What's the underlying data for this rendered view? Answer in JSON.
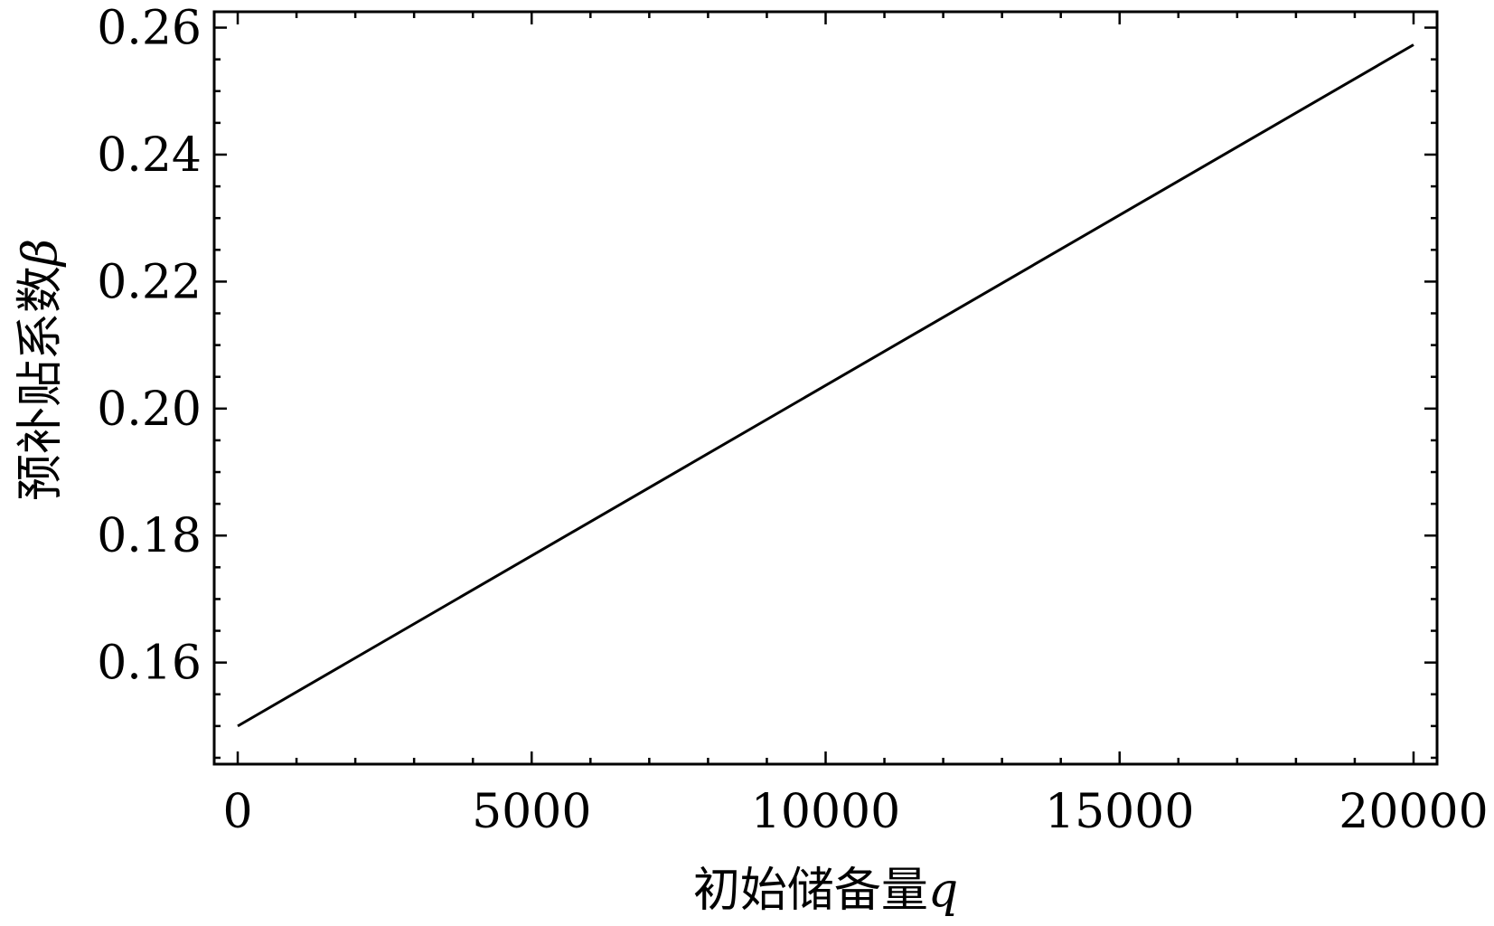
{
  "chart_data": {
    "type": "line",
    "title": "",
    "xlabel_text": "初始储备量",
    "xlabel_symbol": "q",
    "ylabel_text": "预补贴系数",
    "ylabel_symbol": "β",
    "xlim": [
      -400,
      20400
    ],
    "ylim": [
      0.144,
      0.2625
    ],
    "x_ticks": [
      0,
      5000,
      10000,
      15000,
      20000
    ],
    "x_tick_labels": [
      "0",
      "5000",
      "10000",
      "15000",
      "20000"
    ],
    "y_ticks": [
      0.16,
      0.18,
      0.2,
      0.22,
      0.24,
      0.26
    ],
    "y_tick_labels": [
      "0.16",
      "0.18",
      "0.20",
      "0.22",
      "0.24",
      "0.26"
    ],
    "grid": false,
    "series": [
      {
        "x": [
          0,
          20000
        ],
        "y": [
          0.15,
          0.2573
        ]
      }
    ],
    "colors": {
      "line": "#000000",
      "frame": "#000000"
    }
  }
}
